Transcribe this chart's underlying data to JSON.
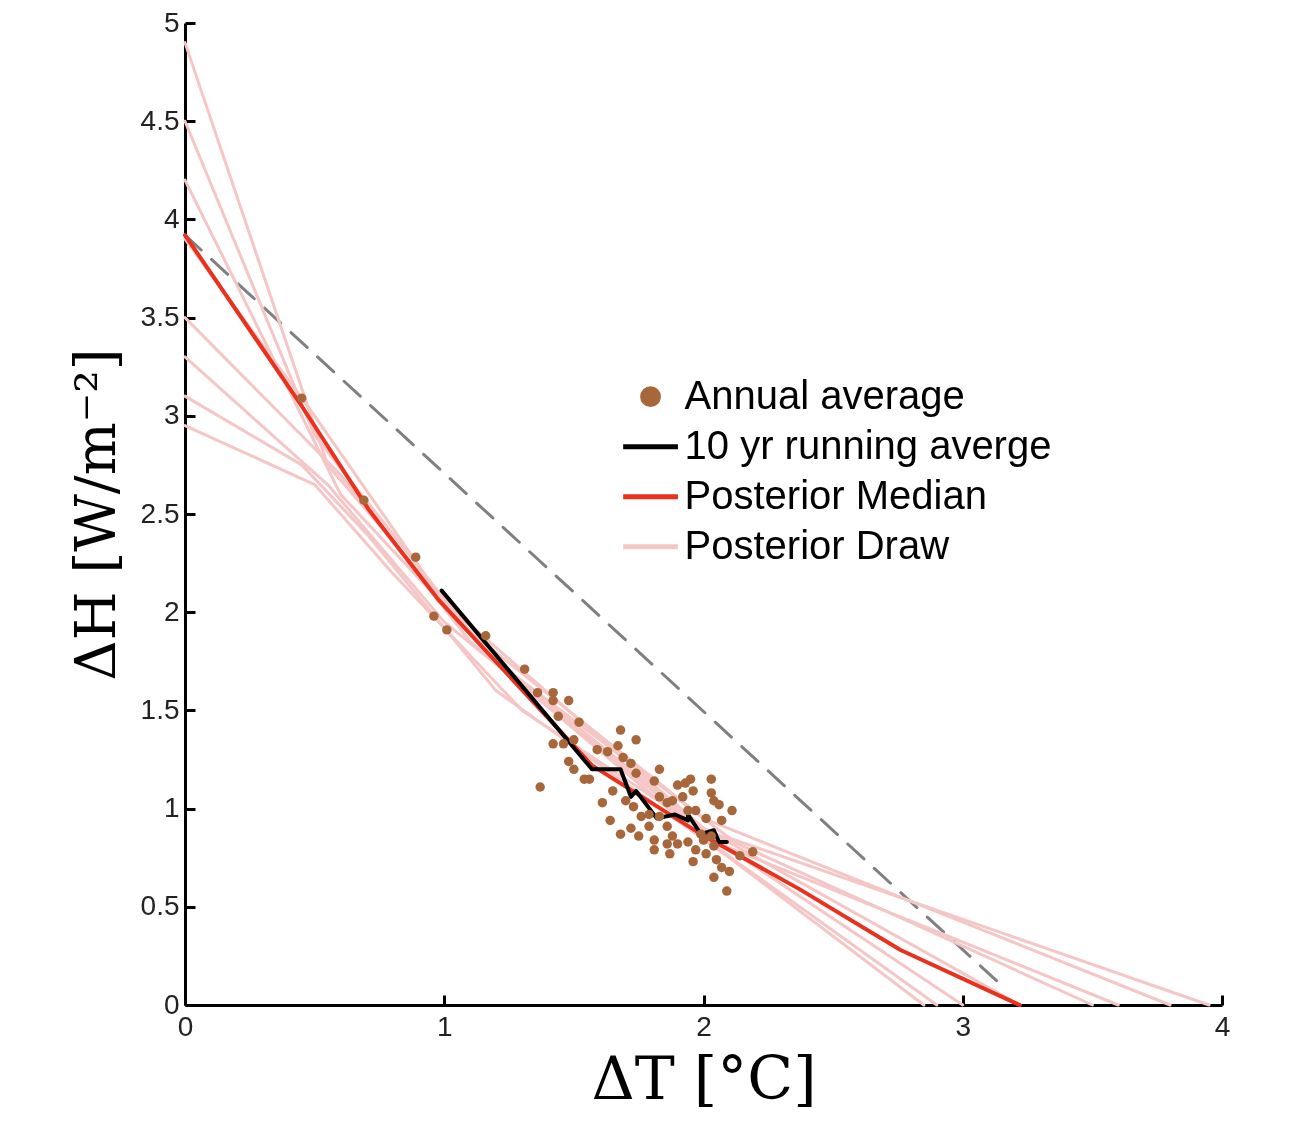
{
  "chart_data": {
    "type": "line",
    "xlabel": "ΔT [°C]",
    "ylabel": "ΔH [W/m⁻²]",
    "xlim": [
      0,
      4
    ],
    "ylim": [
      0,
      5
    ],
    "xticks": [
      0,
      1,
      2,
      3,
      4
    ],
    "yticks": [
      0,
      0.5,
      1,
      1.5,
      2,
      2.5,
      3,
      3.5,
      4,
      4.5,
      5
    ],
    "legend": "right",
    "grid": false,
    "series": [
      {
        "name": "Annual average",
        "type": "scatter",
        "marker": "circle",
        "color": "#a8673a",
        "x": [
          0.45,
          0.69,
          0.89,
          0.96,
          1.01,
          1.16,
          1.31,
          1.36,
          1.42,
          1.42,
          1.48,
          1.44,
          1.52,
          1.37,
          1.42,
          1.46,
          1.5,
          1.48,
          1.5,
          1.54,
          1.56,
          1.59,
          1.63,
          1.67,
          1.68,
          1.74,
          1.69,
          1.72,
          1.74,
          1.61,
          1.64,
          1.68,
          1.72,
          1.75,
          1.65,
          1.7,
          1.73,
          1.76,
          1.79,
          1.81,
          1.81,
          1.83,
          1.81,
          1.83,
          1.86,
          1.88,
          1.9,
          1.93,
          1.95,
          1.96,
          1.92,
          1.94,
          1.86,
          1.88,
          1.86,
          1.9,
          1.87,
          1.94,
          1.97,
          2.01,
          1.96,
          2.03,
          2.03,
          2.04,
          2.06,
          2.11,
          2.01,
          2.07,
          1.99,
          2.03,
          2.04,
          2.05,
          2.07,
          2.1,
          2.04,
          2.09,
          2.14,
          2.19,
          1.79,
          1.83,
          1.97,
          2.0
        ],
        "values": [
          3.09,
          2.57,
          2.28,
          1.98,
          1.91,
          1.88,
          1.71,
          1.59,
          1.59,
          1.55,
          1.55,
          1.47,
          1.44,
          1.11,
          1.33,
          1.33,
          1.35,
          1.24,
          1.2,
          1.15,
          1.15,
          1.3,
          1.29,
          1.32,
          1.4,
          1.35,
          1.26,
          1.23,
          1.18,
          1.03,
          0.94,
          0.87,
          0.9,
          0.86,
          1.09,
          1.04,
          1.01,
          0.96,
          0.91,
          0.84,
          0.79,
          1.2,
          1.14,
          1.06,
          1.03,
          1.04,
          1.12,
          1.13,
          1.15,
          1.09,
          1.06,
          0.99,
          0.91,
          0.86,
          0.82,
          0.82,
          0.77,
          0.83,
          0.79,
          0.77,
          0.73,
          1.15,
          1.08,
          1.04,
          1.02,
          0.99,
          0.95,
          0.94,
          0.87,
          0.86,
          0.81,
          0.74,
          0.7,
          0.68,
          0.65,
          0.58,
          0.76,
          0.78,
          0.97,
          0.96,
          0.99,
          0.84
        ]
      },
      {
        "name": "10 yr running averge",
        "type": "line",
        "color": "#000000",
        "x": [
          0.99,
          1.57,
          1.68,
          1.72,
          1.74,
          1.82,
          1.89,
          1.94,
          1.94,
          1.99,
          2.04,
          2.06,
          2.09
        ],
        "values": [
          2.11,
          1.2,
          1.2,
          1.06,
          1.09,
          0.95,
          0.97,
          0.94,
          0.97,
          0.87,
          0.89,
          0.83,
          0.83
        ]
      },
      {
        "name": "Posterior Median",
        "type": "line",
        "color": "#e8321e",
        "x": [
          0,
          0.45,
          0.71,
          0.98,
          1.57,
          1.99,
          2.37,
          2.76,
          3.22
        ],
        "values": [
          3.92,
          3.05,
          2.52,
          2.06,
          1.22,
          0.87,
          0.59,
          0.28,
          0
        ]
      },
      {
        "name": "Posterior Draw",
        "type": "line",
        "color": "#f4c6c6",
        "x": [
          0,
          0.55,
          1.2,
          2.1,
          3.95
        ],
        "values": [
          4.9,
          2.75,
          1.75,
          0.85,
          0
        ]
      },
      {
        "type": "line",
        "color": "#f4c6c6",
        "x": [
          0,
          0.5,
          1.1,
          2.0,
          3.8
        ],
        "values": [
          4.5,
          2.9,
          1.9,
          0.95,
          0
        ]
      },
      {
        "type": "line",
        "color": "#f4c6c6",
        "x": [
          0,
          0.5,
          1.0,
          2.0,
          3.22
        ],
        "values": [
          3.9,
          3.0,
          2.05,
          0.9,
          0
        ]
      },
      {
        "type": "line",
        "color": "#f4c6c6",
        "x": [
          0,
          0.6,
          1.1,
          2.0,
          2.9
        ],
        "values": [
          3.5,
          2.7,
          1.85,
          0.85,
          0
        ]
      },
      {
        "type": "line",
        "color": "#f4c6c6",
        "x": [
          0,
          0.45,
          0.7,
          1.2,
          2.1,
          2.85
        ],
        "values": [
          3.1,
          2.75,
          2.4,
          1.6,
          0.75,
          0
        ]
      },
      {
        "type": "line",
        "color": "#f4c6c6",
        "x": [
          0,
          0.5,
          0.8,
          1.3,
          2.1,
          3.6
        ],
        "values": [
          2.95,
          2.65,
          2.2,
          1.5,
          0.8,
          0
        ]
      },
      {
        "type": "line",
        "color": "#f4c6c6",
        "x": [
          0,
          0.6,
          1.2,
          2.0,
          3.5
        ],
        "values": [
          4.2,
          2.6,
          1.75,
          0.9,
          0
        ]
      },
      {
        "type": "line",
        "color": "#f4c6c6",
        "x": [
          0,
          0.55,
          1.0,
          2.0,
          3.0
        ],
        "values": [
          3.3,
          2.65,
          1.95,
          0.88,
          0
        ]
      },
      {
        "type": "line",
        "color": "#808080",
        "line_style": "dashed",
        "x": [
          0,
          3.15
        ],
        "values": [
          3.92,
          0.1
        ]
      }
    ]
  }
}
